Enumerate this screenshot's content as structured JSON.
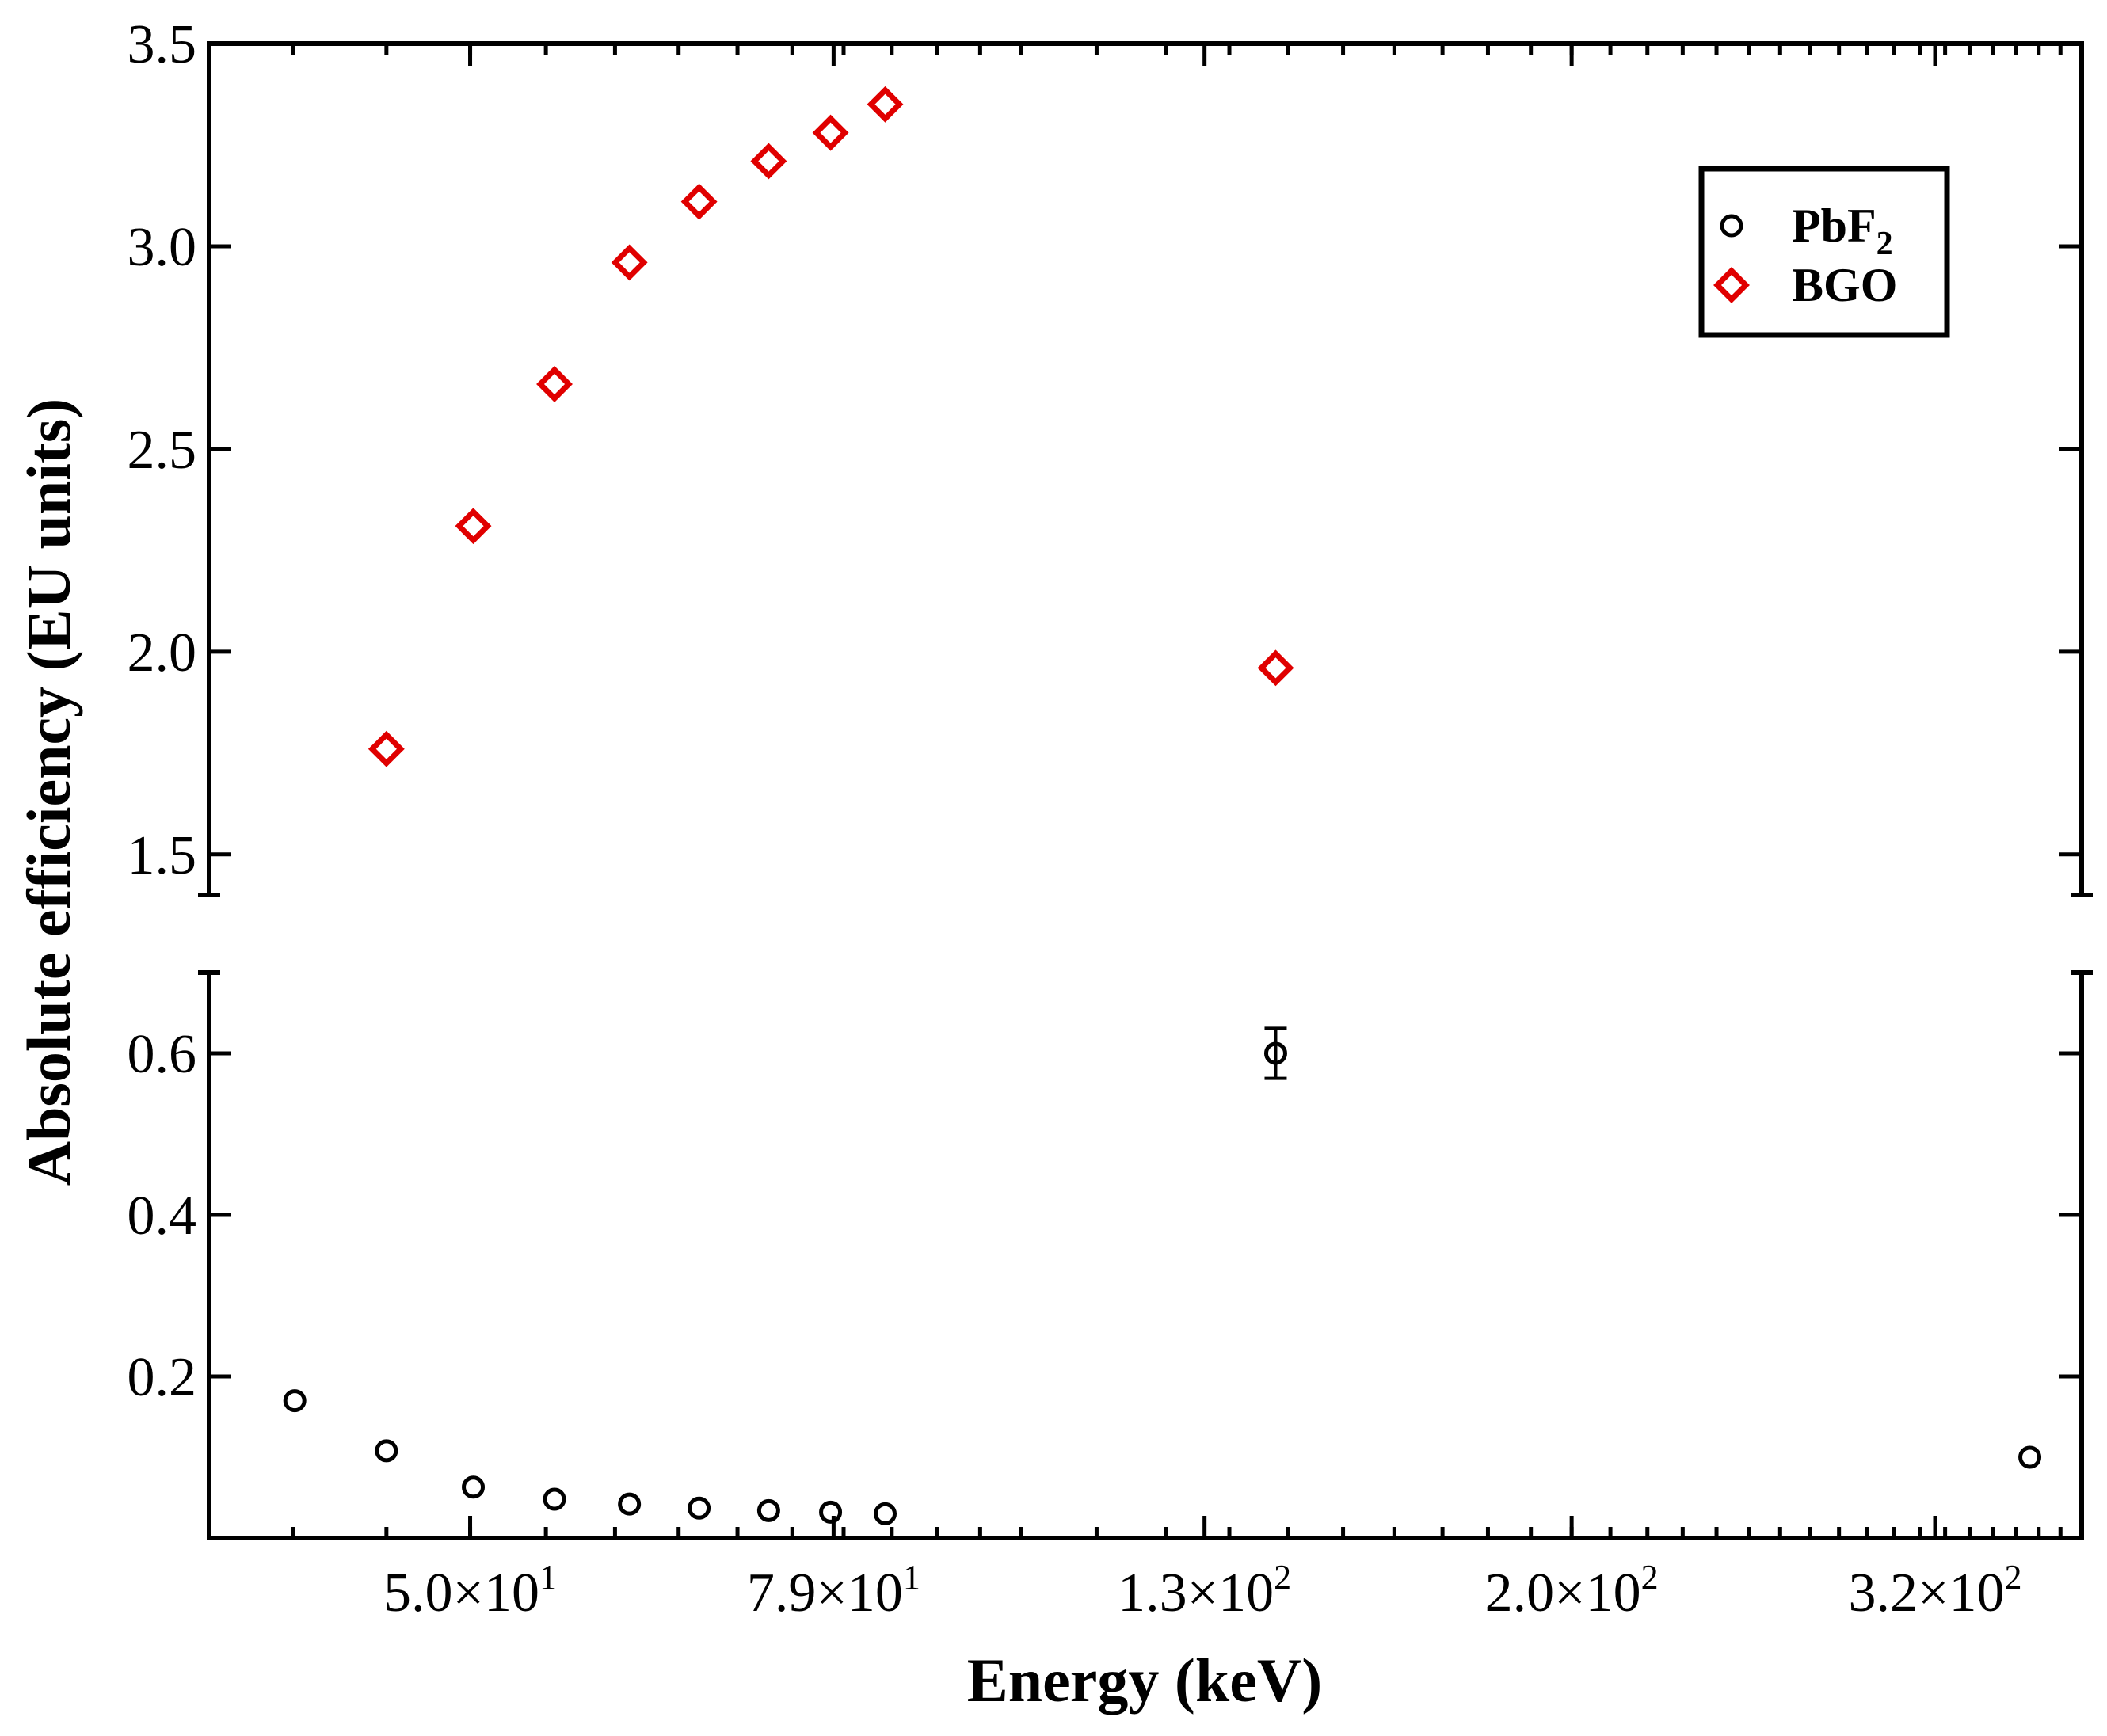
{
  "chart_data": {
    "type": "scatter",
    "xlabel": "Energy (keV)",
    "ylabel": "Absolute efficiency (EU units)",
    "x_scale": "log",
    "xlim": [
      36,
      380
    ],
    "x_ticks": [
      {
        "value": 50,
        "mantissa": "5.0",
        "exponent": "1"
      },
      {
        "value": 79,
        "mantissa": "7.9",
        "exponent": "1"
      },
      {
        "value": 126,
        "mantissa": "1.3",
        "exponent": "2"
      },
      {
        "value": 200,
        "mantissa": "2.0",
        "exponent": "2"
      },
      {
        "value": 316,
        "mantissa": "3.2",
        "exponent": "2"
      }
    ],
    "y_axis_break": true,
    "y_lower_range": [
      0.0,
      0.7
    ],
    "y_upper_range": [
      1.4,
      3.5
    ],
    "y_lower_ticks": [
      "0.2",
      "0.4",
      "0.6"
    ],
    "y_upper_ticks": [
      "1.5",
      "2.0",
      "2.5",
      "3.0",
      "3.5"
    ],
    "legend": {
      "position": "top-right",
      "entries": [
        {
          "base": "PbF",
          "sub": "2",
          "marker": "circle",
          "color": "#000000"
        },
        {
          "base": "BGO",
          "sub": "",
          "marker": "diamond",
          "color": "#e00000"
        }
      ]
    },
    "series": [
      {
        "name": "PbF2",
        "marker": "circle",
        "color": "#000000",
        "x": [
          40.1,
          45.0,
          50.2,
          55.6,
          61.1,
          66.7,
          72.8,
          78.7,
          84.3,
          137.8,
          356.0
        ],
        "y": [
          0.17,
          0.108,
          0.063,
          0.048,
          0.042,
          0.037,
          0.034,
          0.032,
          0.03,
          0.6,
          0.1
        ],
        "y_err": [
          0,
          0,
          0,
          0,
          0,
          0,
          0,
          0,
          0,
          0.031,
          0
        ]
      },
      {
        "name": "BGO",
        "marker": "diamond",
        "color": "#e00000",
        "x": [
          45.0,
          50.2,
          55.6,
          61.1,
          66.7,
          72.8,
          78.7,
          84.3,
          137.8
        ],
        "y": [
          1.76,
          2.31,
          2.66,
          2.96,
          3.11,
          3.21,
          3.28,
          3.35,
          1.96
        ]
      }
    ]
  }
}
